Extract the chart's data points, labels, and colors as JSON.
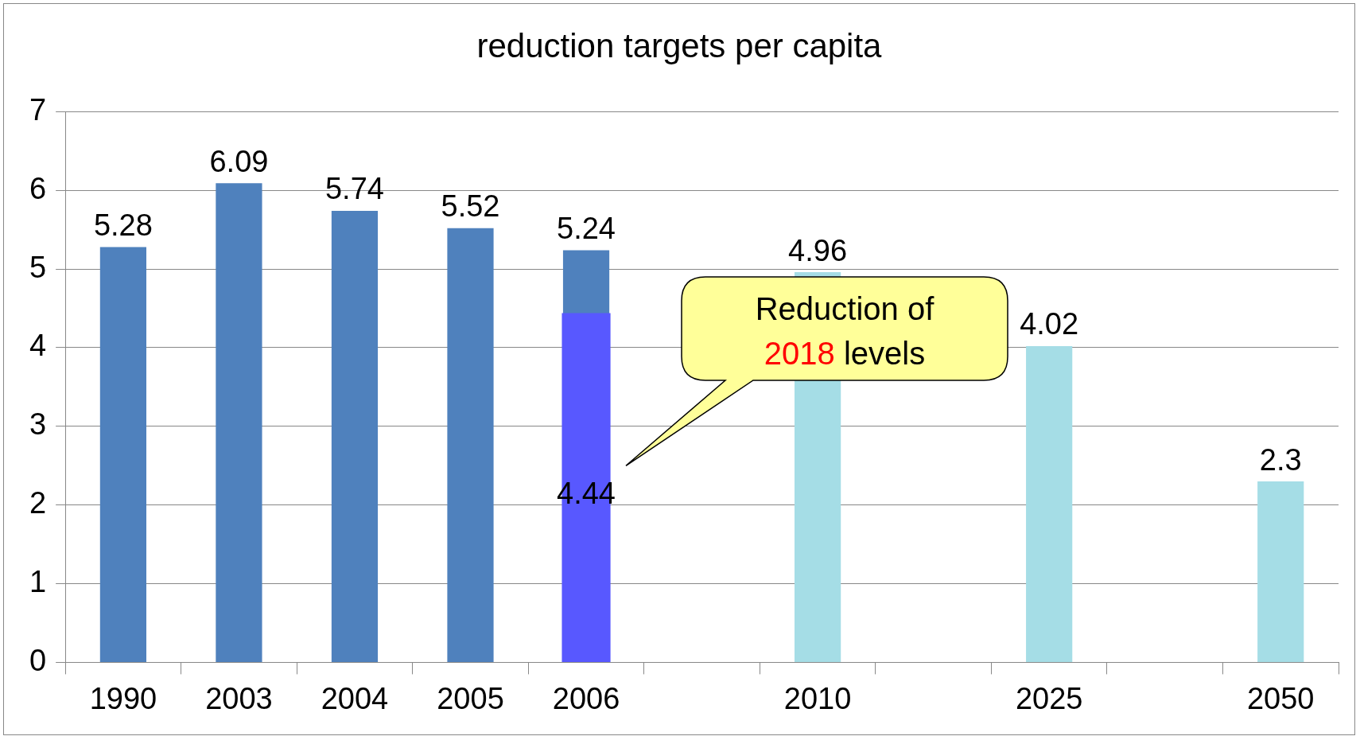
{
  "chart_data": {
    "type": "bar",
    "title": "reduction targets per capita",
    "categories": [
      "1990",
      "2003",
      "2004",
      "2005",
      "2006",
      null,
      "2010",
      null,
      "2025",
      null,
      "2050"
    ],
    "series": [
      {
        "colors": [
          "#4f81bd",
          "#4f81bd",
          "#4f81bd",
          "#4f81bd",
          "#4f81bd",
          null,
          "#a5dde6",
          null,
          "#a5dde6",
          null,
          "#a5dde6"
        ],
        "values": [
          5.28,
          6.09,
          5.74,
          5.52,
          5.24,
          null,
          4.96,
          null,
          4.02,
          null,
          2.3
        ]
      },
      {
        "color": "#5858ff",
        "values": [
          null,
          null,
          null,
          null,
          4.44,
          null,
          null,
          null,
          null,
          null,
          null
        ]
      }
    ],
    "ylim": [
      0,
      7
    ],
    "yticks": [
      0,
      1,
      2,
      3,
      4,
      5,
      6,
      7
    ],
    "grid": "y",
    "legend": false,
    "data_labels": true,
    "annotations": [
      "Reduction of 2018 levels"
    ]
  }
}
